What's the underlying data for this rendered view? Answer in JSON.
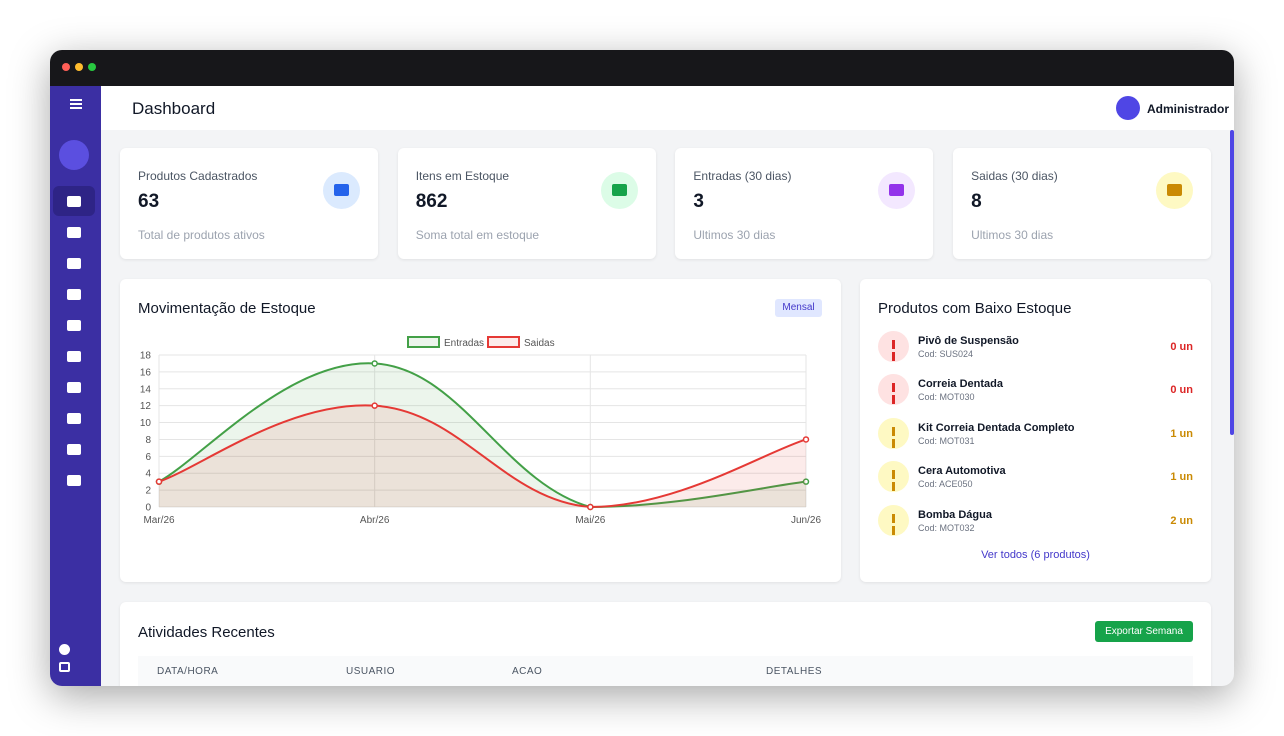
{
  "header": {
    "title": "Dashboard",
    "user": "Administrador"
  },
  "cards": [
    {
      "label": "Produtos Cadastrados",
      "value": 63,
      "note": "Total de produtos ativos",
      "color": "#2563eb",
      "bg": "#dbeafe"
    },
    {
      "label": "Itens em Estoque",
      "value": 862,
      "note": "Soma total em estoque",
      "color": "#16a34a",
      "bg": "#dcfce7"
    },
    {
      "label": "Entradas (30 dias)",
      "value": 3,
      "note": "Ultimos 30 dias",
      "color": "#9333ea",
      "bg": "#f3e8ff"
    },
    {
      "label": "Saidas (30 dias)",
      "value": 8,
      "note": "Ultimos 30 dias",
      "color": "#ca8a04",
      "bg": "#fef9c3"
    }
  ],
  "chart_data": {
    "type": "line",
    "title": "Movimentação de Estoque",
    "badge": "Mensal",
    "categories": [
      "Mar/26",
      "Abr/26",
      "Mai/26",
      "Jun/26"
    ],
    "series": [
      {
        "name": "Entradas",
        "color": "#43a047",
        "fill": "rgba(67,160,71,0.1)",
        "values": [
          3,
          17,
          0,
          3
        ]
      },
      {
        "name": "Saidas",
        "color": "#e53935",
        "fill": "rgba(229,57,53,0.1)",
        "values": [
          3,
          12,
          0,
          8
        ]
      }
    ],
    "ylim": [
      0,
      18
    ],
    "yticks": [
      0,
      2,
      4,
      6,
      8,
      10,
      12,
      14,
      16,
      18
    ],
    "grid": true,
    "legend": "top"
  },
  "low_stock": {
    "title": "Produtos com Baixo Estoque",
    "items": [
      {
        "name": "Pivô de Suspensão",
        "code": "Cod: SUS024",
        "qty": "0 un",
        "color": "#dc2626",
        "bg": "#fee2e2"
      },
      {
        "name": "Correia Dentada",
        "code": "Cod: MOT030",
        "qty": "0 un",
        "color": "#dc2626",
        "bg": "#fee2e2"
      },
      {
        "name": "Kit Correia Dentada Completo",
        "code": "Cod: MOT031",
        "qty": "1 un",
        "color": "#ca8a04",
        "bg": "#fef9c3"
      },
      {
        "name": "Cera Automotiva",
        "code": "Cod: ACE050",
        "qty": "1 un",
        "color": "#ca8a04",
        "bg": "#fef9c3"
      },
      {
        "name": "Bomba Dágua",
        "code": "Cod: MOT032",
        "qty": "2 un",
        "color": "#ca8a04",
        "bg": "#fef9c3"
      }
    ],
    "link": "Ver todos (6 produtos)"
  },
  "activities": {
    "title": "Atividades Recentes",
    "button": "Exportar Semana",
    "columns": [
      "DATA/HORA",
      "USUARIO",
      "ACAO",
      "DETALHES"
    ]
  }
}
